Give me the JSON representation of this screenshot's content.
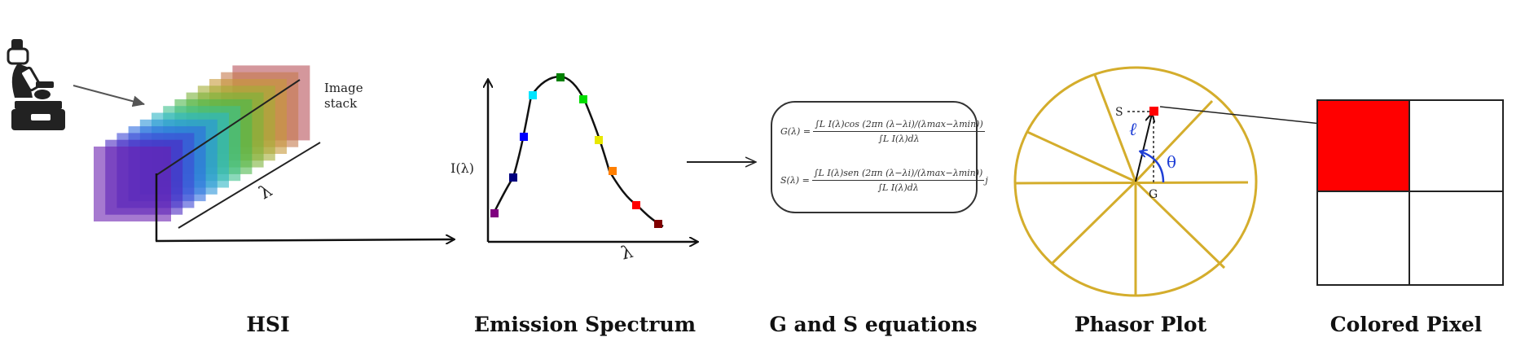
{
  "captions": {
    "hsi": "HSI",
    "spectrum": "Emission Spectrum",
    "equations": "G and S equations",
    "phasor": "Phasor Plot",
    "pixel": "Colored Pixel"
  },
  "hsi": {
    "stack_label_line1": "Image",
    "stack_label_line2": "stack",
    "lambda_label": "λ",
    "microscope_icon": "microscope-icon",
    "layer_colors": [
      "#6a1fb0",
      "#4b2ac2",
      "#3d47d6",
      "#2e6ce0",
      "#2b94d8",
      "#2fb6c4",
      "#3dbf8c",
      "#4fb84d",
      "#7bb23a",
      "#a4ad35",
      "#c79a3a",
      "#c47a4d",
      "#b8515a"
    ]
  },
  "spectrum": {
    "ylabel": "I(λ)",
    "xlabel": "λ",
    "point_colors": [
      "#800080",
      "#00007f",
      "#0000ff",
      "#00e5ff",
      "#008000",
      "#00dd00",
      "#e8e800",
      "#ff7f00",
      "#ff0000",
      "#800000"
    ]
  },
  "equations": {
    "g_lhs": "G(λ) =",
    "g_num": "∫L I(λ)cos (2πn (λ−λi)/(λmax−λmin))",
    "g_den": "∫L I(λ)dλ",
    "s_lhs": "S(λ) =",
    "s_num": "∫L I(λ)sen (2πn (λ−λi)/(λmax−λmin))",
    "s_den": "∫L I(λ)dλ",
    "s_tail": "j"
  },
  "phasor": {
    "s_label": "S",
    "g_label": "G",
    "rho_label": "ℓ",
    "theta_label": "θ",
    "circle_color": "#d4ad2c",
    "marker_color": "#ff0000",
    "arrow_color": "#1f3fd6"
  },
  "pixel": {
    "fill_color": "#ff0000"
  }
}
